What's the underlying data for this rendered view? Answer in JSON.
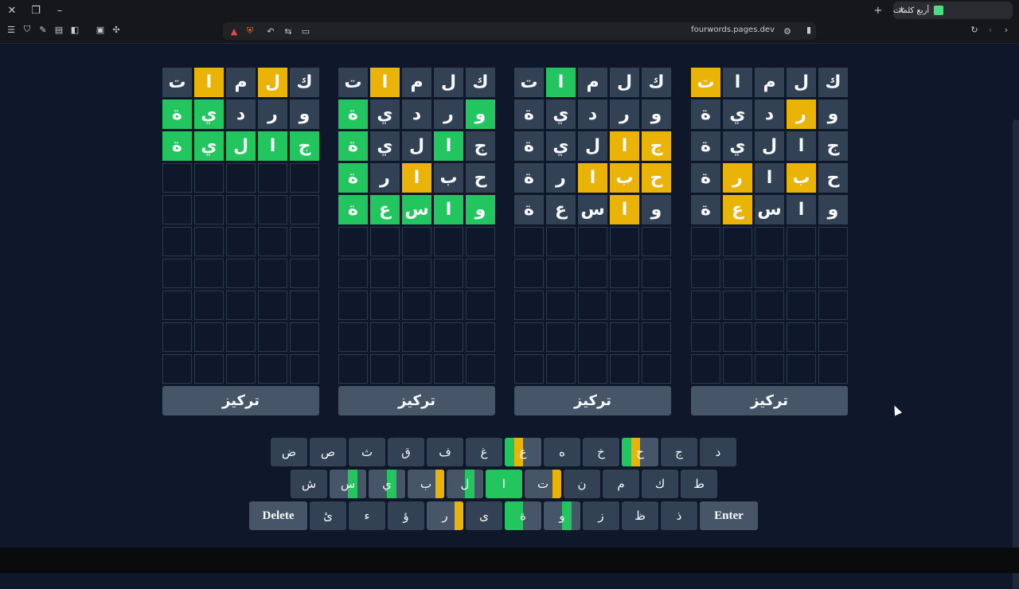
{
  "browser": {
    "tab_title": "أربع كلمات",
    "url": "fourwords.pages.dev",
    "new_tab_label": "+",
    "close_label": "✕"
  },
  "boards": [
    {
      "rows": [
        [
          {
            "ch": "ت",
            "s": "f"
          },
          {
            "ch": "ا",
            "s": "y"
          },
          {
            "ch": "م",
            "s": "f"
          },
          {
            "ch": "ل",
            "s": "y"
          },
          {
            "ch": "ك",
            "s": "f"
          }
        ],
        [
          {
            "ch": "ة",
            "s": "g"
          },
          {
            "ch": "ي",
            "s": "g"
          },
          {
            "ch": "د",
            "s": "f"
          },
          {
            "ch": "ر",
            "s": "f"
          },
          {
            "ch": "و",
            "s": "f"
          }
        ],
        [
          {
            "ch": "ة",
            "s": "g"
          },
          {
            "ch": "ي",
            "s": "g"
          },
          {
            "ch": "ل",
            "s": "g"
          },
          {
            "ch": "ا",
            "s": "g"
          },
          {
            "ch": "ج",
            "s": "g"
          }
        ]
      ]
    },
    {
      "rows": [
        [
          {
            "ch": "ت",
            "s": "f"
          },
          {
            "ch": "ا",
            "s": "y"
          },
          {
            "ch": "م",
            "s": "f"
          },
          {
            "ch": "ل",
            "s": "f"
          },
          {
            "ch": "ك",
            "s": "f"
          }
        ],
        [
          {
            "ch": "ة",
            "s": "g"
          },
          {
            "ch": "ي",
            "s": "f"
          },
          {
            "ch": "د",
            "s": "f"
          },
          {
            "ch": "ر",
            "s": "f"
          },
          {
            "ch": "و",
            "s": "g"
          }
        ],
        [
          {
            "ch": "ة",
            "s": "g"
          },
          {
            "ch": "ي",
            "s": "f"
          },
          {
            "ch": "ل",
            "s": "f"
          },
          {
            "ch": "ا",
            "s": "g"
          },
          {
            "ch": "ج",
            "s": "f"
          }
        ],
        [
          {
            "ch": "ة",
            "s": "g"
          },
          {
            "ch": "ر",
            "s": "f"
          },
          {
            "ch": "ا",
            "s": "y"
          },
          {
            "ch": "ب",
            "s": "f"
          },
          {
            "ch": "ح",
            "s": "f"
          }
        ],
        [
          {
            "ch": "ة",
            "s": "g"
          },
          {
            "ch": "ع",
            "s": "g"
          },
          {
            "ch": "س",
            "s": "g"
          },
          {
            "ch": "ا",
            "s": "g"
          },
          {
            "ch": "و",
            "s": "g"
          }
        ]
      ]
    },
    {
      "rows": [
        [
          {
            "ch": "ت",
            "s": "f"
          },
          {
            "ch": "ا",
            "s": "g"
          },
          {
            "ch": "م",
            "s": "f"
          },
          {
            "ch": "ل",
            "s": "f"
          },
          {
            "ch": "ك",
            "s": "f"
          }
        ],
        [
          {
            "ch": "ة",
            "s": "f"
          },
          {
            "ch": "ي",
            "s": "f"
          },
          {
            "ch": "د",
            "s": "f"
          },
          {
            "ch": "ر",
            "s": "f"
          },
          {
            "ch": "و",
            "s": "f"
          }
        ],
        [
          {
            "ch": "ة",
            "s": "f"
          },
          {
            "ch": "ي",
            "s": "f"
          },
          {
            "ch": "ل",
            "s": "f"
          },
          {
            "ch": "ا",
            "s": "y"
          },
          {
            "ch": "ج",
            "s": "y"
          }
        ],
        [
          {
            "ch": "ة",
            "s": "f"
          },
          {
            "ch": "ر",
            "s": "f"
          },
          {
            "ch": "ا",
            "s": "y"
          },
          {
            "ch": "ب",
            "s": "y"
          },
          {
            "ch": "ح",
            "s": "y"
          }
        ],
        [
          {
            "ch": "ة",
            "s": "f"
          },
          {
            "ch": "ع",
            "s": "f"
          },
          {
            "ch": "س",
            "s": "f"
          },
          {
            "ch": "ا",
            "s": "y"
          },
          {
            "ch": "و",
            "s": "f"
          }
        ]
      ]
    },
    {
      "rows": [
        [
          {
            "ch": "ت",
            "s": "y"
          },
          {
            "ch": "ا",
            "s": "f"
          },
          {
            "ch": "م",
            "s": "f"
          },
          {
            "ch": "ل",
            "s": "f"
          },
          {
            "ch": "ك",
            "s": "f"
          }
        ],
        [
          {
            "ch": "ة",
            "s": "f"
          },
          {
            "ch": "ي",
            "s": "f"
          },
          {
            "ch": "د",
            "s": "f"
          },
          {
            "ch": "ر",
            "s": "y"
          },
          {
            "ch": "و",
            "s": "f"
          }
        ],
        [
          {
            "ch": "ة",
            "s": "f"
          },
          {
            "ch": "ي",
            "s": "f"
          },
          {
            "ch": "ل",
            "s": "f"
          },
          {
            "ch": "ا",
            "s": "f"
          },
          {
            "ch": "ج",
            "s": "f"
          }
        ],
        [
          {
            "ch": "ة",
            "s": "f"
          },
          {
            "ch": "ر",
            "s": "y"
          },
          {
            "ch": "ا",
            "s": "f"
          },
          {
            "ch": "ب",
            "s": "y"
          },
          {
            "ch": "ح",
            "s": "f"
          }
        ],
        [
          {
            "ch": "ة",
            "s": "f"
          },
          {
            "ch": "ع",
            "s": "y"
          },
          {
            "ch": "س",
            "s": "f"
          },
          {
            "ch": "ا",
            "s": "f"
          },
          {
            "ch": "و",
            "s": "f"
          }
        ]
      ]
    }
  ],
  "total_rows": 10,
  "focus_label": "تركيز",
  "keyboard": {
    "rows": [
      [
        {
          "label": "ض",
          "q": [
            "",
            "",
            "",
            ""
          ]
        },
        {
          "label": "ص",
          "q": [
            "",
            "",
            "",
            ""
          ]
        },
        {
          "label": "ث",
          "q": [
            "",
            "",
            "",
            ""
          ]
        },
        {
          "label": "ق",
          "q": [
            "",
            "",
            "",
            ""
          ]
        },
        {
          "label": "ف",
          "q": [
            "",
            "",
            "",
            ""
          ]
        },
        {
          "label": "غ",
          "q": [
            "",
            "",
            "",
            ""
          ]
        },
        {
          "label": "ع",
          "q": [
            "g",
            "y",
            "",
            ""
          ]
        },
        {
          "label": "ه",
          "q": [
            "",
            "",
            "",
            ""
          ]
        },
        {
          "label": "خ",
          "q": [
            "",
            "",
            "",
            ""
          ]
        },
        {
          "label": "ح",
          "q": [
            "g",
            "y",
            "",
            ""
          ]
        },
        {
          "label": "ج",
          "q": [
            "",
            "",
            "",
            ""
          ]
        },
        {
          "label": "د",
          "q": [
            "",
            "",
            "",
            ""
          ]
        }
      ],
      [
        {
          "label": "ش",
          "q": [
            "",
            "",
            "",
            ""
          ]
        },
        {
          "label": "س",
          "q": [
            "",
            "",
            "g",
            ""
          ]
        },
        {
          "label": "ي",
          "q": [
            "",
            "",
            "g",
            ""
          ]
        },
        {
          "label": "ب",
          "q": [
            "",
            "",
            "",
            "y"
          ]
        },
        {
          "label": "ل",
          "q": [
            "",
            "",
            "g",
            ""
          ]
        },
        {
          "label": "ا",
          "q": [
            "g",
            "g",
            "g",
            "g"
          ]
        },
        {
          "label": "ت",
          "q": [
            "",
            "",
            "",
            "y"
          ]
        },
        {
          "label": "ن",
          "q": [
            "",
            "",
            "",
            ""
          ]
        },
        {
          "label": "م",
          "q": [
            "",
            "",
            "",
            ""
          ]
        },
        {
          "label": "ك",
          "q": [
            "",
            "",
            "",
            ""
          ]
        },
        {
          "label": "ط",
          "q": [
            "",
            "",
            "",
            ""
          ]
        }
      ],
      [
        {
          "label": "Delete",
          "wide": true
        },
        {
          "label": "ئ",
          "q": [
            "",
            "",
            "",
            ""
          ]
        },
        {
          "label": "ء",
          "q": [
            "",
            "",
            "",
            ""
          ]
        },
        {
          "label": "ؤ",
          "q": [
            "",
            "",
            "",
            ""
          ]
        },
        {
          "label": "ر",
          "q": [
            "",
            "",
            "",
            "y"
          ]
        },
        {
          "label": "ى",
          "q": [
            "",
            "",
            "",
            ""
          ]
        },
        {
          "label": "ة",
          "q": [
            "g",
            "g",
            "",
            ""
          ]
        },
        {
          "label": "و",
          "q": [
            "",
            "",
            "g",
            ""
          ]
        },
        {
          "label": "ز",
          "q": [
            "",
            "",
            "",
            ""
          ]
        },
        {
          "label": "ظ",
          "q": [
            "",
            "",
            "",
            ""
          ]
        },
        {
          "label": "ذ",
          "q": [
            "",
            "",
            "",
            ""
          ]
        },
        {
          "label": "Enter",
          "wide": true
        }
      ]
    ]
  },
  "colors": {
    "green": "#22c55e",
    "yellow": "#eab308",
    "filled": "#334155",
    "key": "#475569"
  }
}
